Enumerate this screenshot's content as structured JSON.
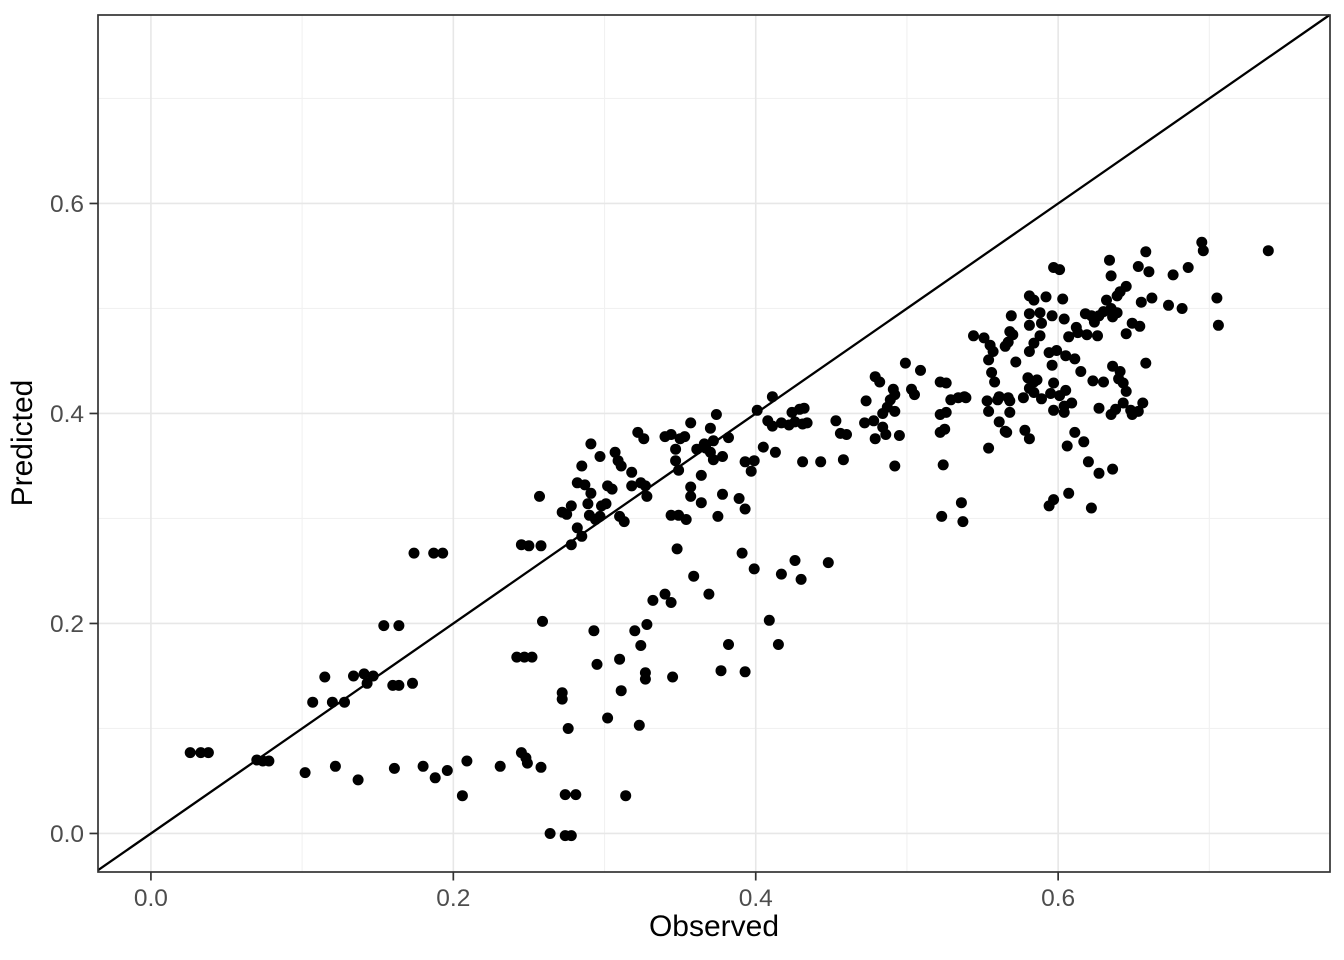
{
  "chart_data": {
    "type": "scatter",
    "title": "",
    "xlabel": "Observed",
    "ylabel": "Predicted",
    "x_ticks": [
      0.0,
      0.2,
      0.4,
      0.6
    ],
    "y_ticks": [
      0.0,
      0.2,
      0.4,
      0.6
    ],
    "x_tick_labels": [
      "0.0",
      "0.2",
      "0.4",
      "0.6"
    ],
    "y_tick_labels": [
      "0.0",
      "0.2",
      "0.4",
      "0.6"
    ],
    "x_minor_ticks": [
      0.1,
      0.3,
      0.5,
      0.7
    ],
    "y_minor_ticks": [
      0.1,
      0.3,
      0.5,
      0.7
    ],
    "xlim": [
      -0.035,
      0.7798
    ],
    "ylim": [
      -0.0367,
      0.7795
    ],
    "grid": true,
    "legend": "none",
    "reference_line": {
      "type": "identity",
      "slope": 1,
      "intercept": 0
    },
    "point_style": {
      "radius_px": 5.5
    },
    "colors": {
      "point": "#000000",
      "reference_line": "#000000",
      "grid_major": "#e7e7e7",
      "grid_minor": "#f1f1f1",
      "panel_border": "#333333",
      "tick": "#333333",
      "tick_label": "#4d4d4d",
      "axis_title": "#000000",
      "background": "#ffffff"
    },
    "points": [
      [
        0.026,
        0.077
      ],
      [
        0.033,
        0.077
      ],
      [
        0.038,
        0.077
      ],
      [
        0.07,
        0.07
      ],
      [
        0.074,
        0.069
      ],
      [
        0.078,
        0.069
      ],
      [
        0.102,
        0.058
      ],
      [
        0.107,
        0.125
      ],
      [
        0.115,
        0.149
      ],
      [
        0.12,
        0.125
      ],
      [
        0.122,
        0.064
      ],
      [
        0.128,
        0.125
      ],
      [
        0.134,
        0.15
      ],
      [
        0.137,
        0.051
      ],
      [
        0.141,
        0.152
      ],
      [
        0.143,
        0.143
      ],
      [
        0.147,
        0.15
      ],
      [
        0.154,
        0.198
      ],
      [
        0.16,
        0.141
      ],
      [
        0.161,
        0.062
      ],
      [
        0.164,
        0.141
      ],
      [
        0.164,
        0.198
      ],
      [
        0.173,
        0.143
      ],
      [
        0.174,
        0.267
      ],
      [
        0.18,
        0.064
      ],
      [
        0.187,
        0.267
      ],
      [
        0.188,
        0.053
      ],
      [
        0.193,
        0.267
      ],
      [
        0.196,
        0.06
      ],
      [
        0.206,
        0.036
      ],
      [
        0.209,
        0.069
      ],
      [
        0.231,
        0.064
      ],
      [
        0.242,
        0.168
      ],
      [
        0.245,
        0.077
      ],
      [
        0.247,
        0.168
      ],
      [
        0.248,
        0.072
      ],
      [
        0.249,
        0.067
      ],
      [
        0.252,
        0.168
      ],
      [
        0.258,
        0.063
      ],
      [
        0.259,
        0.202
      ],
      [
        0.264,
        0.0
      ],
      [
        0.272,
        0.128
      ],
      [
        0.272,
        0.134
      ],
      [
        0.274,
        -0.002
      ],
      [
        0.274,
        0.037
      ],
      [
        0.276,
        0.1
      ],
      [
        0.278,
        -0.002
      ],
      [
        0.281,
        0.037
      ],
      [
        0.293,
        0.193
      ],
      [
        0.295,
        0.161
      ],
      [
        0.302,
        0.11
      ],
      [
        0.31,
        0.166
      ],
      [
        0.311,
        0.136
      ],
      [
        0.314,
        0.036
      ],
      [
        0.32,
        0.193
      ],
      [
        0.323,
        0.103
      ],
      [
        0.324,
        0.179
      ],
      [
        0.327,
        0.147
      ],
      [
        0.327,
        0.153
      ],
      [
        0.328,
        0.199
      ],
      [
        0.332,
        0.222
      ],
      [
        0.34,
        0.228
      ],
      [
        0.344,
        0.22
      ],
      [
        0.345,
        0.149
      ],
      [
        0.359,
        0.245
      ],
      [
        0.369,
        0.228
      ],
      [
        0.377,
        0.155
      ],
      [
        0.382,
        0.18
      ],
      [
        0.393,
        0.154
      ],
      [
        0.409,
        0.203
      ],
      [
        0.415,
        0.18
      ],
      [
        0.245,
        0.275
      ],
      [
        0.25,
        0.274
      ],
      [
        0.257,
        0.321
      ],
      [
        0.258,
        0.274
      ],
      [
        0.272,
        0.306
      ],
      [
        0.275,
        0.304
      ],
      [
        0.278,
        0.275
      ],
      [
        0.278,
        0.312
      ],
      [
        0.282,
        0.291
      ],
      [
        0.282,
        0.334
      ],
      [
        0.285,
        0.283
      ],
      [
        0.285,
        0.35
      ],
      [
        0.287,
        0.332
      ],
      [
        0.289,
        0.314
      ],
      [
        0.29,
        0.303
      ],
      [
        0.291,
        0.324
      ],
      [
        0.291,
        0.371
      ],
      [
        0.294,
        0.299
      ],
      [
        0.297,
        0.302
      ],
      [
        0.297,
        0.359
      ],
      [
        0.298,
        0.312
      ],
      [
        0.301,
        0.314
      ],
      [
        0.302,
        0.331
      ],
      [
        0.305,
        0.328
      ],
      [
        0.307,
        0.363
      ],
      [
        0.309,
        0.355
      ],
      [
        0.31,
        0.302
      ],
      [
        0.311,
        0.35
      ],
      [
        0.313,
        0.297
      ],
      [
        0.318,
        0.331
      ],
      [
        0.318,
        0.344
      ],
      [
        0.322,
        0.382
      ],
      [
        0.324,
        0.334
      ],
      [
        0.326,
        0.376
      ],
      [
        0.327,
        0.331
      ],
      [
        0.328,
        0.321
      ],
      [
        0.34,
        0.378
      ],
      [
        0.344,
        0.303
      ],
      [
        0.344,
        0.38
      ],
      [
        0.347,
        0.355
      ],
      [
        0.347,
        0.366
      ],
      [
        0.348,
        0.271
      ],
      [
        0.349,
        0.303
      ],
      [
        0.349,
        0.346
      ],
      [
        0.35,
        0.376
      ],
      [
        0.353,
        0.378
      ],
      [
        0.354,
        0.299
      ],
      [
        0.357,
        0.321
      ],
      [
        0.357,
        0.33
      ],
      [
        0.357,
        0.391
      ],
      [
        0.361,
        0.366
      ],
      [
        0.364,
        0.315
      ],
      [
        0.364,
        0.341
      ],
      [
        0.366,
        0.371
      ],
      [
        0.367,
        0.367
      ],
      [
        0.37,
        0.363
      ],
      [
        0.37,
        0.386
      ],
      [
        0.372,
        0.356
      ],
      [
        0.372,
        0.374
      ],
      [
        0.374,
        0.399
      ],
      [
        0.375,
        0.302
      ],
      [
        0.378,
        0.323
      ],
      [
        0.378,
        0.359
      ],
      [
        0.382,
        0.377
      ],
      [
        0.389,
        0.319
      ],
      [
        0.391,
        0.267
      ],
      [
        0.393,
        0.309
      ],
      [
        0.393,
        0.354
      ],
      [
        0.397,
        0.345
      ],
      [
        0.399,
        0.252
      ],
      [
        0.399,
        0.355
      ],
      [
        0.401,
        0.403
      ],
      [
        0.405,
        0.368
      ],
      [
        0.408,
        0.393
      ],
      [
        0.411,
        0.388
      ],
      [
        0.411,
        0.416
      ],
      [
        0.413,
        0.363
      ],
      [
        0.417,
        0.247
      ],
      [
        0.417,
        0.391
      ],
      [
        0.422,
        0.389
      ],
      [
        0.424,
        0.401
      ],
      [
        0.426,
        0.26
      ],
      [
        0.426,
        0.392
      ],
      [
        0.429,
        0.404
      ],
      [
        0.43,
        0.242
      ],
      [
        0.431,
        0.354
      ],
      [
        0.431,
        0.39
      ],
      [
        0.432,
        0.405
      ],
      [
        0.434,
        0.391
      ],
      [
        0.443,
        0.354
      ],
      [
        0.448,
        0.258
      ],
      [
        0.453,
        0.393
      ],
      [
        0.456,
        0.381
      ],
      [
        0.458,
        0.356
      ],
      [
        0.46,
        0.38
      ],
      [
        0.472,
        0.391
      ],
      [
        0.473,
        0.412
      ],
      [
        0.478,
        0.393
      ],
      [
        0.479,
        0.376
      ],
      [
        0.479,
        0.435
      ],
      [
        0.482,
        0.43
      ],
      [
        0.484,
        0.387
      ],
      [
        0.484,
        0.4
      ],
      [
        0.486,
        0.38
      ],
      [
        0.487,
        0.406
      ],
      [
        0.489,
        0.413
      ],
      [
        0.491,
        0.423
      ],
      [
        0.492,
        0.35
      ],
      [
        0.492,
        0.402
      ],
      [
        0.492,
        0.418
      ],
      [
        0.495,
        0.379
      ],
      [
        0.499,
        0.448
      ],
      [
        0.503,
        0.423
      ],
      [
        0.505,
        0.418
      ],
      [
        0.509,
        0.441
      ],
      [
        0.522,
        0.382
      ],
      [
        0.522,
        0.399
      ],
      [
        0.522,
        0.43
      ],
      [
        0.523,
        0.302
      ],
      [
        0.524,
        0.351
      ],
      [
        0.525,
        0.385
      ],
      [
        0.526,
        0.401
      ],
      [
        0.526,
        0.429
      ],
      [
        0.529,
        0.413
      ],
      [
        0.534,
        0.415
      ],
      [
        0.536,
        0.315
      ],
      [
        0.537,
        0.297
      ],
      [
        0.538,
        0.416
      ],
      [
        0.539,
        0.415
      ],
      [
        0.544,
        0.474
      ],
      [
        0.551,
        0.472
      ],
      [
        0.553,
        0.412
      ],
      [
        0.554,
        0.367
      ],
      [
        0.554,
        0.402
      ],
      [
        0.554,
        0.451
      ],
      [
        0.555,
        0.465
      ],
      [
        0.556,
        0.439
      ],
      [
        0.557,
        0.459
      ],
      [
        0.558,
        0.43
      ],
      [
        0.56,
        0.413
      ],
      [
        0.561,
        0.392
      ],
      [
        0.561,
        0.416
      ],
      [
        0.565,
        0.383
      ],
      [
        0.565,
        0.464
      ],
      [
        0.566,
        0.382
      ],
      [
        0.567,
        0.415
      ],
      [
        0.567,
        0.468
      ],
      [
        0.568,
        0.401
      ],
      [
        0.568,
        0.412
      ],
      [
        0.568,
        0.478
      ],
      [
        0.569,
        0.493
      ],
      [
        0.57,
        0.475
      ],
      [
        0.572,
        0.449
      ],
      [
        0.577,
        0.415
      ],
      [
        0.578,
        0.384
      ],
      [
        0.58,
        0.434
      ],
      [
        0.581,
        0.376
      ],
      [
        0.581,
        0.424
      ],
      [
        0.581,
        0.459
      ],
      [
        0.581,
        0.484
      ],
      [
        0.581,
        0.495
      ],
      [
        0.581,
        0.512
      ],
      [
        0.584,
        0.42
      ],
      [
        0.584,
        0.43
      ],
      [
        0.584,
        0.467
      ],
      [
        0.584,
        0.508
      ],
      [
        0.586,
        0.432
      ],
      [
        0.588,
        0.474
      ],
      [
        0.588,
        0.496
      ],
      [
        0.589,
        0.414
      ],
      [
        0.589,
        0.486
      ],
      [
        0.592,
        0.511
      ],
      [
        0.594,
        0.312
      ],
      [
        0.594,
        0.458
      ],
      [
        0.595,
        0.419
      ],
      [
        0.596,
        0.446
      ],
      [
        0.596,
        0.493
      ],
      [
        0.597,
        0.318
      ],
      [
        0.597,
        0.403
      ],
      [
        0.597,
        0.429
      ],
      [
        0.597,
        0.539
      ],
      [
        0.599,
        0.46
      ],
      [
        0.601,
        0.417
      ],
      [
        0.601,
        0.537
      ],
      [
        0.603,
        0.509
      ],
      [
        0.604,
        0.401
      ],
      [
        0.604,
        0.407
      ],
      [
        0.604,
        0.49
      ],
      [
        0.605,
        0.422
      ],
      [
        0.605,
        0.455
      ],
      [
        0.606,
        0.369
      ],
      [
        0.607,
        0.324
      ],
      [
        0.607,
        0.473
      ],
      [
        0.609,
        0.41
      ],
      [
        0.611,
        0.382
      ],
      [
        0.611,
        0.452
      ],
      [
        0.612,
        0.482
      ],
      [
        0.613,
        0.477
      ],
      [
        0.615,
        0.44
      ],
      [
        0.617,
        0.373
      ],
      [
        0.618,
        0.495
      ],
      [
        0.619,
        0.475
      ],
      [
        0.62,
        0.354
      ],
      [
        0.622,
        0.31
      ],
      [
        0.622,
        0.493
      ],
      [
        0.623,
        0.431
      ],
      [
        0.624,
        0.487
      ],
      [
        0.626,
        0.474
      ],
      [
        0.627,
        0.343
      ],
      [
        0.627,
        0.405
      ],
      [
        0.627,
        0.493
      ],
      [
        0.63,
        0.43
      ],
      [
        0.63,
        0.497
      ],
      [
        0.632,
        0.508
      ],
      [
        0.634,
        0.546
      ],
      [
        0.635,
        0.399
      ],
      [
        0.635,
        0.5
      ],
      [
        0.635,
        0.531
      ],
      [
        0.636,
        0.347
      ],
      [
        0.636,
        0.445
      ],
      [
        0.636,
        0.492
      ],
      [
        0.638,
        0.404
      ],
      [
        0.639,
        0.496
      ],
      [
        0.639,
        0.512
      ],
      [
        0.64,
        0.433
      ],
      [
        0.641,
        0.44
      ],
      [
        0.641,
        0.516
      ],
      [
        0.643,
        0.41
      ],
      [
        0.643,
        0.429
      ],
      [
        0.645,
        0.421
      ],
      [
        0.645,
        0.476
      ],
      [
        0.645,
        0.521
      ],
      [
        0.648,
        0.403
      ],
      [
        0.649,
        0.399
      ],
      [
        0.649,
        0.486
      ],
      [
        0.653,
        0.402
      ],
      [
        0.653,
        0.54
      ],
      [
        0.654,
        0.483
      ],
      [
        0.655,
        0.506
      ],
      [
        0.656,
        0.41
      ],
      [
        0.658,
        0.448
      ],
      [
        0.658,
        0.554
      ],
      [
        0.66,
        0.535
      ],
      [
        0.662,
        0.51
      ],
      [
        0.673,
        0.503
      ],
      [
        0.676,
        0.532
      ],
      [
        0.682,
        0.5
      ],
      [
        0.686,
        0.539
      ],
      [
        0.695,
        0.563
      ],
      [
        0.696,
        0.555
      ],
      [
        0.705,
        0.51
      ],
      [
        0.706,
        0.484
      ],
      [
        0.739,
        0.555
      ]
    ]
  }
}
